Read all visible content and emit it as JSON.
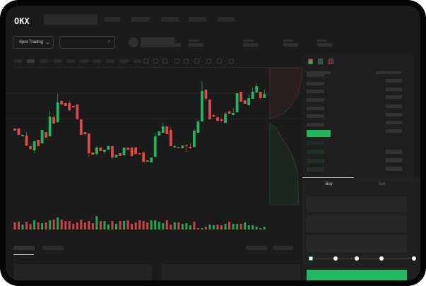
{
  "header": {
    "logo": "OKX",
    "market_selector": "Spot Trading",
    "chevron": "chevron-down-icon"
  },
  "order_form": {
    "tabs": [
      "Buy",
      "Sell"
    ],
    "active_tab": "Buy",
    "slider_percent": 0
  },
  "colors": {
    "up": "#23b45e",
    "down": "#e04848",
    "background": "#1b1b1b",
    "accent": "#25b864"
  },
  "chart_data": {
    "type": "candlestick",
    "title": "",
    "xlabel": "",
    "ylabel": "",
    "ohlc": [
      [
        68,
        68,
        65,
        65
      ],
      [
        68,
        69,
        59,
        59
      ],
      [
        57,
        59,
        57,
        59
      ],
      [
        58,
        63,
        43,
        44
      ],
      [
        43,
        44,
        38,
        39
      ],
      [
        37,
        51,
        33,
        50
      ],
      [
        52,
        52,
        43,
        43
      ],
      [
        47,
        66,
        47,
        66
      ],
      [
        63,
        63,
        55,
        55
      ],
      [
        57,
        93,
        56,
        85
      ],
      [
        84,
        87,
        75,
        75
      ],
      [
        77,
        117,
        76,
        105
      ],
      [
        107,
        108,
        102,
        102
      ],
      [
        104,
        104,
        100,
        100
      ],
      [
        104,
        108,
        92,
        94
      ],
      [
        100,
        100,
        98,
        98
      ],
      [
        102,
        103,
        81,
        81
      ],
      [
        81,
        81,
        59,
        59
      ],
      [
        63,
        63,
        58,
        60
      ],
      [
        61,
        61,
        28,
        33
      ],
      [
        34,
        35,
        31,
        31
      ],
      [
        32,
        43,
        30,
        41
      ],
      [
        41,
        42,
        36,
        36
      ],
      [
        35,
        38,
        32,
        38
      ],
      [
        38,
        44,
        38,
        43
      ],
      [
        43,
        44,
        25,
        27
      ],
      [
        27,
        31,
        27,
        31
      ],
      [
        33,
        33,
        29,
        29
      ],
      [
        30,
        41,
        30,
        41
      ],
      [
        41,
        41,
        38,
        38
      ],
      [
        41,
        42,
        28,
        29
      ],
      [
        41,
        42,
        31,
        32
      ],
      [
        33,
        33,
        32,
        32
      ],
      [
        34,
        35,
        21,
        21
      ],
      [
        23,
        23,
        21,
        21
      ],
      [
        20,
        27,
        20,
        27
      ],
      [
        28,
        62,
        27,
        57
      ],
      [
        58,
        64,
        58,
        64
      ],
      [
        62,
        76,
        62,
        71
      ],
      [
        71,
        71,
        60,
        60
      ],
      [
        66,
        70,
        43,
        43
      ],
      [
        42,
        45,
        40,
        43
      ],
      [
        42,
        42,
        41,
        41
      ],
      [
        40,
        44,
        40,
        44
      ],
      [
        45,
        45,
        35,
        44
      ],
      [
        42,
        47,
        40,
        40
      ],
      [
        42,
        67,
        41,
        65
      ],
      [
        62,
        80,
        62,
        78
      ],
      [
        78,
        135,
        78,
        121
      ],
      [
        123,
        123,
        107,
        110
      ],
      [
        109,
        110,
        81,
        81
      ],
      [
        87,
        88,
        84,
        85
      ],
      [
        84,
        85,
        78,
        79
      ],
      [
        81,
        82,
        78,
        79
      ],
      [
        76,
        92,
        76,
        89
      ],
      [
        92,
        94,
        89,
        89
      ],
      [
        87,
        97,
        87,
        90
      ],
      [
        91,
        118,
        91,
        118
      ],
      [
        120,
        120,
        106,
        106
      ],
      [
        108,
        108,
        103,
        103
      ],
      [
        101,
        116,
        101,
        111
      ],
      [
        110,
        126,
        110,
        120
      ],
      [
        119,
        132,
        119,
        128
      ],
      [
        120,
        120,
        109,
        111
      ],
      [
        111,
        123,
        111,
        117
      ]
    ],
    "volume": [
      10,
      11,
      7,
      11,
      8,
      13,
      10,
      9,
      10,
      13,
      14,
      17,
      14,
      12,
      12,
      8,
      10,
      14,
      10,
      12,
      9,
      19,
      12,
      12,
      7,
      12,
      8,
      12,
      12,
      13,
      8,
      10,
      13,
      12,
      10,
      13,
      13,
      11,
      9,
      13,
      7,
      10,
      10,
      8,
      9,
      6,
      11,
      2,
      2,
      4,
      7,
      6,
      7,
      6,
      8,
      11,
      8,
      8,
      8,
      10,
      6,
      6,
      4,
      2,
      4
    ],
    "volume_up": [
      0,
      0,
      1,
      0,
      0,
      1,
      0,
      1,
      0,
      1,
      0,
      1,
      0,
      0,
      0,
      0,
      0,
      0,
      0,
      0,
      0,
      1,
      0,
      1,
      1,
      0,
      1,
      0,
      1,
      0,
      0,
      0,
      0,
      0,
      0,
      1,
      1,
      1,
      1,
      0,
      0,
      1,
      0,
      1,
      1,
      1,
      0,
      0,
      1,
      0,
      1,
      1,
      0,
      0,
      1,
      0,
      1,
      1,
      0,
      1,
      1,
      1,
      1,
      0,
      1
    ]
  }
}
